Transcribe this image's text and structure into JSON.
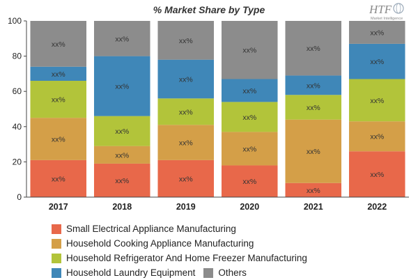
{
  "chart_data": {
    "type": "bar",
    "stacked": true,
    "title": "% Market Share by Type",
    "categories": [
      "2017",
      "2018",
      "2019",
      "2020",
      "2021",
      "2022"
    ],
    "series": [
      {
        "name": "Small Electrical Appliance Manufacturing",
        "color": "#e8684a",
        "values": [
          21,
          19,
          21,
          18,
          8,
          26
        ]
      },
      {
        "name": "Household Cooking Appliance Manufacturing",
        "color": "#d49f48",
        "values": [
          24,
          10,
          20,
          19,
          36,
          17
        ]
      },
      {
        "name": "Household Refrigerator And Home Freezer Manufacturing",
        "color": "#b2c43a",
        "values": [
          21,
          17,
          15,
          17,
          14,
          24
        ]
      },
      {
        "name": "Household Laundry Equipment",
        "color": "#3f87b8",
        "values": [
          8,
          34,
          22,
          13,
          11,
          20
        ]
      },
      {
        "name": "Others",
        "color": "#8c8c8c",
        "values": [
          26,
          20,
          22,
          33,
          31,
          13
        ]
      }
    ],
    "data_label": "xx%",
    "ylim": [
      0,
      100
    ],
    "yticks": [
      0,
      20,
      40,
      60,
      80,
      100
    ],
    "grid": false,
    "legend_position": "bottom"
  },
  "logo": {
    "text": "HTF",
    "subtext": "Market Intelligence"
  }
}
